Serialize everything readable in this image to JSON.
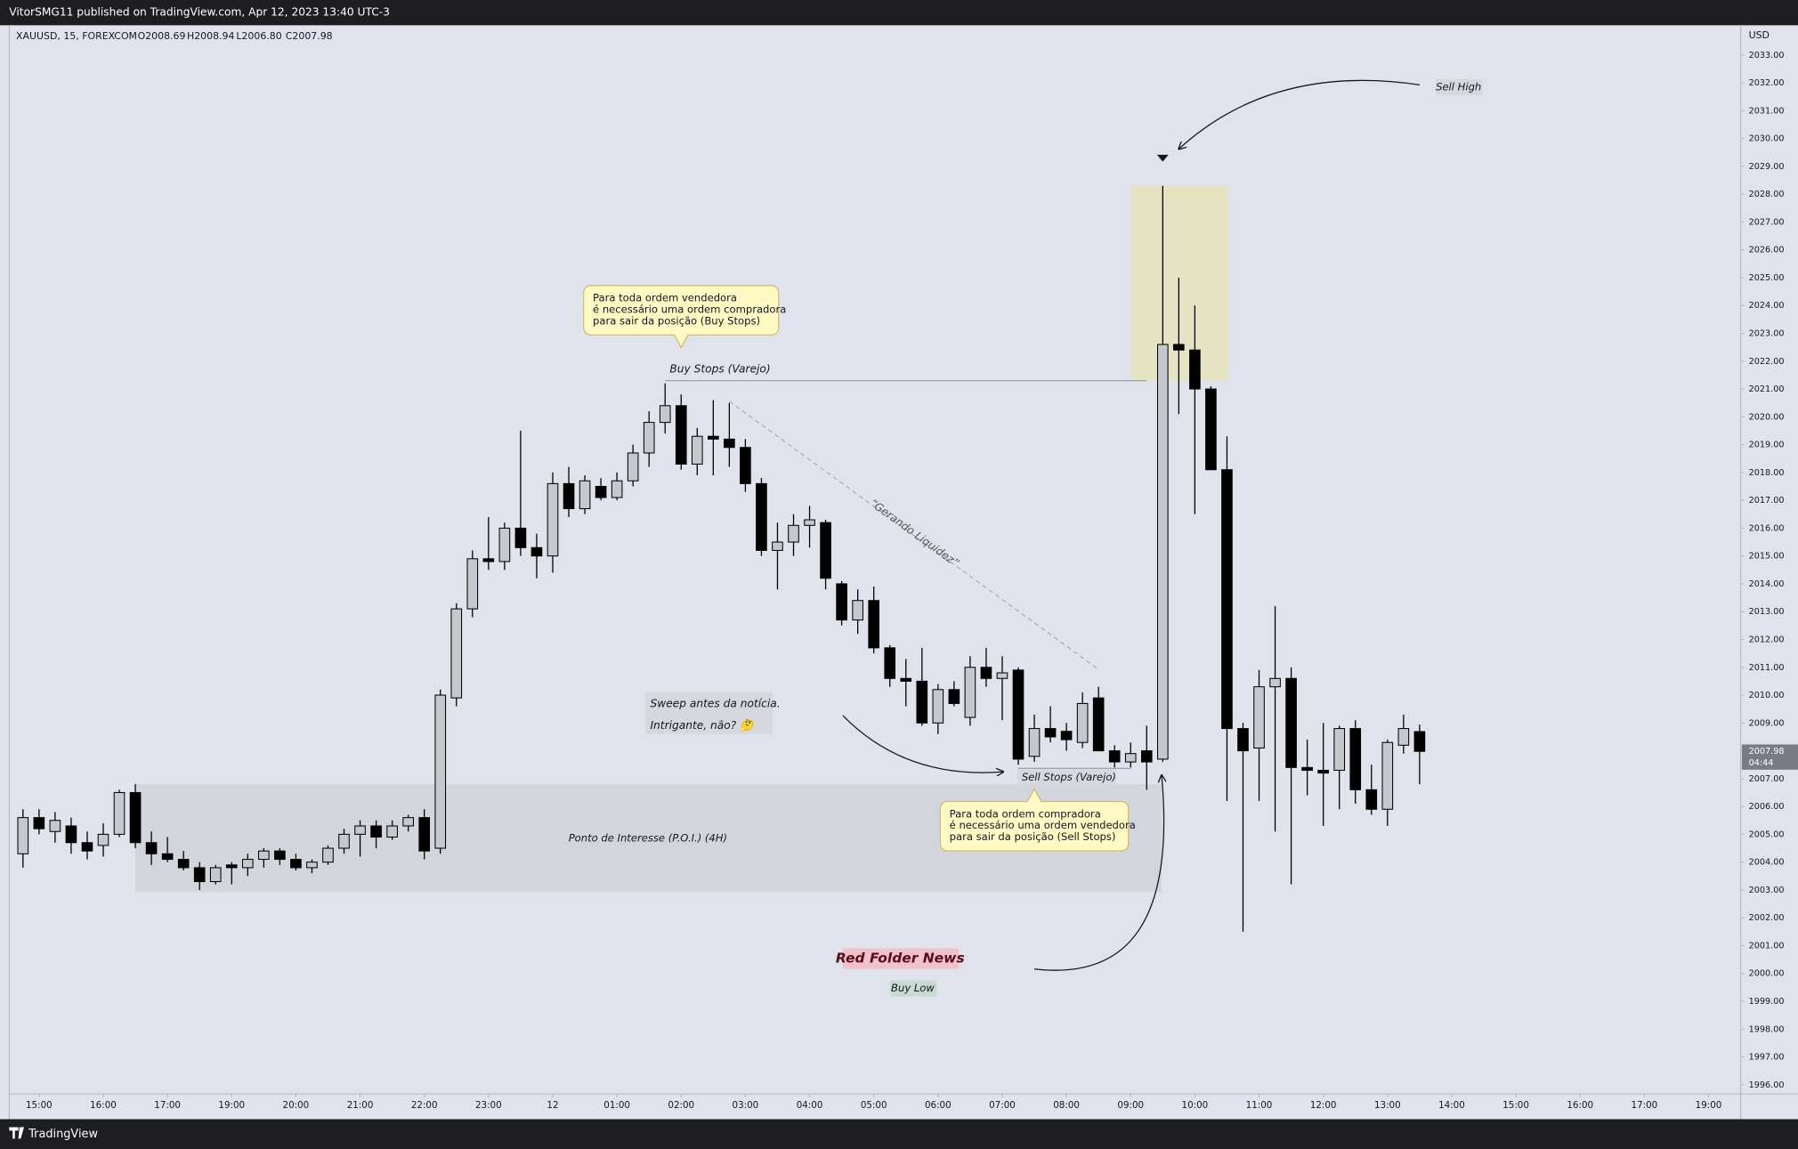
{
  "chart_data": {
    "type": "candlestick",
    "publisher": "VitorSMG11 published on TradingView.com, Apr 12, 2023 13:40 UTC-3",
    "symbol": "XAUUSD, 15, FOREXCOM",
    "ohlc": [
      "O2008.69",
      "H2008.94",
      "L2006.80",
      "C2007.98"
    ],
    "currency": "USD",
    "last_price": {
      "value": 2007.98,
      "label": "2007.98"
    },
    "countdown": "04:44",
    "brand": "TradingView",
    "up_color": "#c6c8ce",
    "down_color": "#000000",
    "grid": false,
    "open": [
      2004.3,
      2005.6,
      2005.1,
      2005.3,
      2004.7,
      2004.6,
      2005.0,
      2006.5,
      2004.7,
      2004.3,
      2004.1,
      2003.8,
      2003.3,
      2003.9,
      2003.8,
      2004.1,
      2004.4,
      2004.1,
      2003.8,
      2004.0,
      2004.5,
      2005.0,
      2005.3,
      2004.9,
      2005.3,
      2005.6,
      2004.5,
      2009.9,
      2013.1,
      2014.9,
      2014.8,
      2016.0,
      2015.3,
      2015.0,
      2017.6,
      2016.7,
      2017.5,
      2017.1,
      2017.7,
      2018.7,
      2019.8,
      2020.4,
      2018.3,
      2019.3,
      2019.2,
      2018.9,
      2017.6,
      2015.2,
      2015.5,
      2016.1,
      2016.2,
      2014.0,
      2012.7,
      2013.4,
      2011.7,
      2010.6,
      2010.5,
      2009.0,
      2010.2,
      2009.2,
      2011.0,
      2010.6,
      2010.9,
      2007.8,
      2008.8,
      2008.7,
      2008.3,
      2009.9,
      2008.0,
      2007.6,
      2008.0,
      2007.7,
      2022.6,
      2022.4,
      2021.0,
      2018.1,
      2008.8,
      2008.1,
      2010.3,
      2010.6,
      2007.4,
      2007.3,
      2007.3,
      2008.8,
      2006.6,
      2005.9,
      2008.2,
      2008.69
    ],
    "high": [
      2005.9,
      2005.9,
      2005.8,
      2005.6,
      2005.1,
      2005.4,
      2006.6,
      2006.8,
      2005.1,
      2004.9,
      2004.4,
      2004.0,
      2003.9,
      2004.0,
      2004.3,
      2004.5,
      2004.5,
      2004.3,
      2004.1,
      2004.6,
      2005.2,
      2005.5,
      2005.5,
      2005.5,
      2005.7,
      2005.9,
      2010.2,
      2013.3,
      2015.2,
      2016.4,
      2016.2,
      2019.5,
      2015.8,
      2018.0,
      2018.2,
      2017.9,
      2017.8,
      2018.0,
      2019.0,
      2020.2,
      2021.2,
      2020.8,
      2019.6,
      2020.6,
      2020.5,
      2019.2,
      2017.8,
      2016.2,
      2016.5,
      2016.8,
      2016.3,
      2014.1,
      2013.8,
      2013.9,
      2011.8,
      2011.3,
      2011.7,
      2010.4,
      2010.5,
      2011.4,
      2011.7,
      2011.4,
      2011.0,
      2009.3,
      2009.6,
      2009.0,
      2010.1,
      2010.3,
      2008.2,
      2008.3,
      2008.9,
      2028.3,
      2025.0,
      2024.0,
      2021.1,
      2019.3,
      2009.0,
      2010.9,
      2013.2,
      2011.0,
      2008.4,
      2009.0,
      2008.9,
      2009.1,
      2007.5,
      2008.4,
      2009.3,
      2008.94
    ],
    "low": [
      2003.8,
      2005.0,
      2004.7,
      2004.3,
      2004.1,
      2004.2,
      2004.9,
      2004.5,
      2003.9,
      2004.0,
      2003.7,
      2003.0,
      2003.2,
      2003.2,
      2003.5,
      2003.8,
      2003.9,
      2003.7,
      2003.6,
      2003.9,
      2004.3,
      2004.2,
      2004.5,
      2004.8,
      2005.1,
      2004.1,
      2004.3,
      2009.6,
      2012.8,
      2014.5,
      2014.5,
      2015.0,
      2014.2,
      2014.4,
      2016.4,
      2016.5,
      2017.0,
      2017.0,
      2017.5,
      2018.2,
      2019.4,
      2018.1,
      2017.9,
      2017.9,
      2018.2,
      2017.3,
      2015.0,
      2013.8,
      2015.0,
      2015.3,
      2013.8,
      2012.5,
      2012.2,
      2011.5,
      2010.3,
      2009.6,
      2008.9,
      2008.6,
      2009.6,
      2008.9,
      2010.3,
      2009.1,
      2007.5,
      2007.6,
      2008.3,
      2008.0,
      2008.1,
      2008.0,
      2007.4,
      2007.4,
      2006.6,
      2007.6,
      2020.1,
      2016.5,
      2018.1,
      2006.2,
      2001.5,
      2006.2,
      2005.1,
      2003.2,
      2006.4,
      2005.3,
      2005.9,
      2006.1,
      2005.7,
      2005.3,
      2007.9,
      2006.8
    ],
    "close": [
      2005.6,
      2005.2,
      2005.5,
      2004.7,
      2004.4,
      2005.0,
      2006.5,
      2004.7,
      2004.3,
      2004.1,
      2003.8,
      2003.3,
      2003.8,
      2003.8,
      2004.1,
      2004.4,
      2004.1,
      2003.8,
      2004.0,
      2004.5,
      2005.0,
      2005.3,
      2004.9,
      2005.3,
      2005.6,
      2004.4,
      2010.0,
      2013.1,
      2014.9,
      2014.8,
      2016.0,
      2015.3,
      2015.0,
      2017.6,
      2016.7,
      2017.7,
      2017.1,
      2017.7,
      2018.7,
      2019.8,
      2020.4,
      2018.3,
      2019.3,
      2019.2,
      2018.9,
      2017.6,
      2015.2,
      2015.5,
      2016.1,
      2016.3,
      2014.2,
      2012.7,
      2013.4,
      2011.7,
      2010.6,
      2010.5,
      2009.0,
      2010.2,
      2009.7,
      2011.0,
      2010.6,
      2010.8,
      2007.7,
      2008.8,
      2008.5,
      2008.4,
      2009.7,
      2008.0,
      2007.6,
      2007.9,
      2007.6,
      2022.6,
      2022.4,
      2021.0,
      2018.1,
      2008.8,
      2008.0,
      2010.3,
      2010.6,
      2007.4,
      2007.3,
      2007.2,
      2008.8,
      2006.6,
      2005.9,
      2008.3,
      2008.8,
      2007.98
    ],
    "xlim": [
      -0.86,
      107
    ],
    "xticks": [
      {
        "value": 1,
        "label": "15:00"
      },
      {
        "value": 5,
        "label": "16:00"
      },
      {
        "value": 9,
        "label": "17:00"
      },
      {
        "value": 13,
        "label": "19:00"
      },
      {
        "value": 17,
        "label": "20:00"
      },
      {
        "value": 21,
        "label": "21:00"
      },
      {
        "value": 25,
        "label": "22:00"
      },
      {
        "value": 29,
        "label": "23:00"
      },
      {
        "value": 33,
        "label": "12"
      },
      {
        "value": 37,
        "label": "01:00"
      },
      {
        "value": 41,
        "label": "02:00"
      },
      {
        "value": 45,
        "label": "03:00"
      },
      {
        "value": 49,
        "label": "04:00"
      },
      {
        "value": 53,
        "label": "05:00"
      },
      {
        "value": 57,
        "label": "06:00"
      },
      {
        "value": 61,
        "label": "07:00"
      },
      {
        "value": 65,
        "label": "08:00"
      },
      {
        "value": 69,
        "label": "09:00"
      },
      {
        "value": 73,
        "label": "10:00"
      },
      {
        "value": 77,
        "label": "11:00"
      },
      {
        "value": 81,
        "label": "12:00"
      },
      {
        "value": 85,
        "label": "13:00"
      },
      {
        "value": 89,
        "label": "14:00"
      },
      {
        "value": 93,
        "label": "15:00"
      },
      {
        "value": 97,
        "label": "16:00"
      },
      {
        "value": 101,
        "label": "17:00"
      },
      {
        "value": 105,
        "label": "19:00"
      }
    ],
    "ylim": [
      1995.67,
      2034.07
    ],
    "yticks": [
      {
        "value": 1996,
        "label": "1996.00"
      },
      {
        "value": 1997,
        "label": "1997.00"
      },
      {
        "value": 1998,
        "label": "1998.00"
      },
      {
        "value": 1999,
        "label": "1999.00"
      },
      {
        "value": 2000,
        "label": "2000.00"
      },
      {
        "value": 2001,
        "label": "2001.00"
      },
      {
        "value": 2002,
        "label": "2002.00"
      },
      {
        "value": 2003,
        "label": "2003.00"
      },
      {
        "value": 2004,
        "label": "2004.00"
      },
      {
        "value": 2005,
        "label": "2005.00"
      },
      {
        "value": 2006,
        "label": "2006.00"
      },
      {
        "value": 2007,
        "label": "2007.00"
      },
      {
        "value": 2008,
        "label": "2008.00"
      },
      {
        "value": 2009,
        "label": "2009.00"
      },
      {
        "value": 2010,
        "label": "2010.00"
      },
      {
        "value": 2011,
        "label": "2011.00"
      },
      {
        "value": 2012,
        "label": "2012.00"
      },
      {
        "value": 2013,
        "label": "2013.00"
      },
      {
        "value": 2014,
        "label": "2014.00"
      },
      {
        "value": 2015,
        "label": "2015.00"
      },
      {
        "value": 2016,
        "label": "2016.00"
      },
      {
        "value": 2017,
        "label": "2017.00"
      },
      {
        "value": 2018,
        "label": "2018.00"
      },
      {
        "value": 2019,
        "label": "2019.00"
      },
      {
        "value": 2020,
        "label": "2020.00"
      },
      {
        "value": 2021,
        "label": "2021.00"
      },
      {
        "value": 2022,
        "label": "2022.00"
      },
      {
        "value": 2023,
        "label": "2023.00"
      },
      {
        "value": 2024,
        "label": "2024.00"
      },
      {
        "value": 2025,
        "label": "2025.00"
      },
      {
        "value": 2026,
        "label": "2026.00"
      },
      {
        "value": 2027,
        "label": "2027.00"
      },
      {
        "value": 2028,
        "label": "2028.00"
      },
      {
        "value": 2029,
        "label": "2029.00"
      },
      {
        "value": 2030,
        "label": "2030.00"
      },
      {
        "value": 2031,
        "label": "2031.00"
      },
      {
        "value": 2032,
        "label": "2032.00"
      },
      {
        "value": 2033,
        "label": "2033.00"
      }
    ],
    "annotations": {
      "buy_callout": [
        "Para toda ordem vendedora",
        "é necessário uma ordem compradora",
        "para sair da posição (Buy Stops)"
      ],
      "buy_stops": "Buy Stops (Varejo)",
      "liquidity": "“Gerando Liquidez”",
      "sweep": [
        "Sweep antes da notícia.",
        "Intrigante, não? 🤔"
      ],
      "sell_stops": "Sell Stops (Varejo)",
      "sell_callout": [
        "Para toda ordem compradora",
        "é necessário uma ordem vendedora",
        "para sair da posição (Sell Stops)"
      ],
      "poi": "Ponto de Interesse (P.O.I.) (4H)",
      "news": "Red Folder News",
      "buy_low": "Buy Low",
      "sell_high": "Sell High"
    }
  }
}
